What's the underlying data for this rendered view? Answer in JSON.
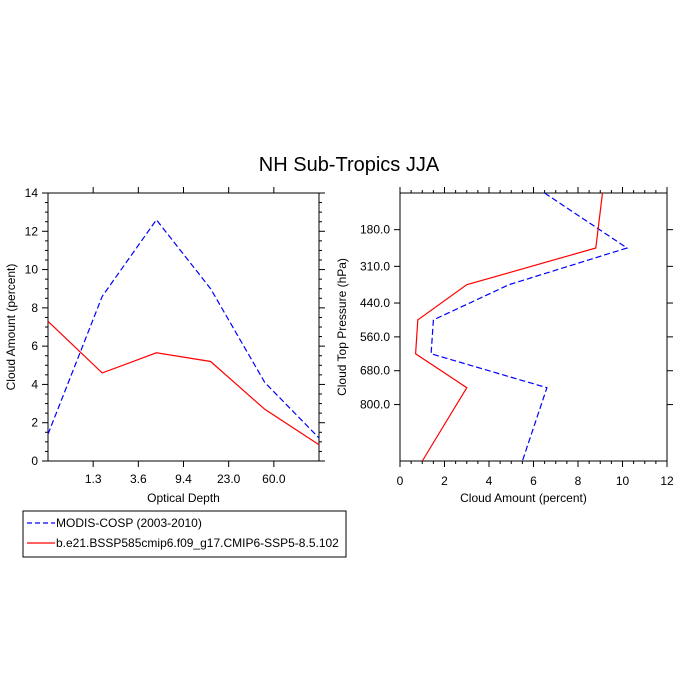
{
  "title": "NH Sub-Tropics JJA",
  "legend": {
    "placement": "bottom-left",
    "entries": [
      {
        "label": "MODIS-COSP (2003-2010)",
        "color": "#0000ff",
        "dash": "dashed"
      },
      {
        "label": "b.e21.BSSP585cmip6.f09_g17.CMIP6-SSP5-8.5.102",
        "color": "#ff0000",
        "dash": "solid"
      }
    ]
  },
  "chart_data": [
    {
      "type": "line",
      "xlabel": "Optical Depth",
      "ylabel": "Cloud Amount (percent)",
      "x_tick_labels": [
        "1.3",
        "3.6",
        "9.4",
        "23.0",
        "60.0"
      ],
      "ylim": [
        0,
        14
      ],
      "y_ticks": [
        0,
        2,
        4,
        6,
        8,
        10,
        12,
        14
      ],
      "series": [
        {
          "name": "MODIS-COSP (2003-2010)",
          "color": "#0000ff",
          "dash": "dashed",
          "values": [
            1.4,
            8.6,
            12.6,
            9.0,
            4.1,
            1.2
          ]
        },
        {
          "name": "b.e21.BSSP585cmip6.f09_g17.CMIP6-SSP5-8.5.102",
          "color": "#ff0000",
          "dash": "solid",
          "values": [
            7.3,
            4.6,
            5.65,
            5.2,
            2.7,
            0.85
          ]
        }
      ]
    },
    {
      "type": "line",
      "xlabel": "Cloud Amount (percent)",
      "ylabel": "Cloud Top Pressure (hPa)",
      "xlim": [
        0,
        12
      ],
      "x_ticks": [
        0,
        2,
        4,
        6,
        8,
        10,
        12
      ],
      "ylim": [
        1000,
        50
      ],
      "y_ticks": [
        180,
        310,
        440,
        560,
        680,
        800
      ],
      "y_tick_labels": [
        "180.0",
        "310.0",
        "440.0",
        "560.0",
        "680.0",
        "800.0"
      ],
      "series": [
        {
          "name": "MODIS-COSP (2003-2010)",
          "color": "#0000ff",
          "dash": "dashed",
          "points": [
            [
              6.5,
              50
            ],
            [
              10.2,
              245
            ],
            [
              4.9,
              375
            ],
            [
              1.5,
              500
            ],
            [
              1.4,
              620
            ],
            [
              6.6,
              740
            ],
            [
              5.5,
              1000
            ]
          ]
        },
        {
          "name": "b.e21.BSSP585cmip6.f09_g17.CMIP6-SSP5-8.5.102",
          "color": "#ff0000",
          "dash": "solid",
          "points": [
            [
              9.1,
              50
            ],
            [
              8.8,
              245
            ],
            [
              3.0,
              375
            ],
            [
              0.8,
              500
            ],
            [
              0.7,
              620
            ],
            [
              3.0,
              740
            ],
            [
              1.0,
              1000
            ]
          ]
        }
      ]
    }
  ]
}
